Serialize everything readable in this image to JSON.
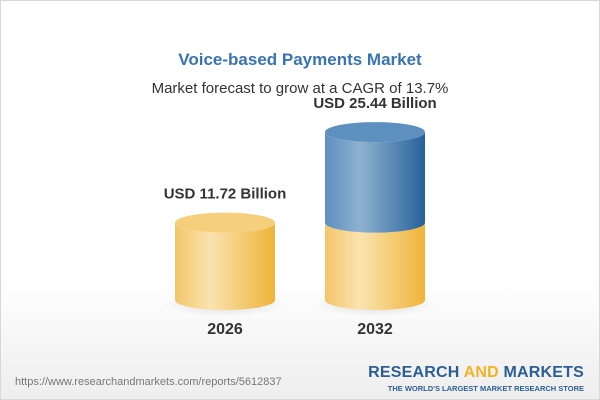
{
  "header": {
    "title": "Voice-based Payments Market",
    "subtitle": "Market forecast to grow at a CAGR of 13.7%"
  },
  "chart_data": {
    "type": "bar",
    "style": "3d-cylinder",
    "title": "Voice-based Payments Market",
    "subtitle": "Market forecast to grow at a CAGR of 13.7%",
    "categories": [
      "2026",
      "2032"
    ],
    "values": [
      11.72,
      25.44
    ],
    "unit": "USD Billion",
    "data_labels": [
      "USD 11.72 Billion",
      "USD 25.44 Billion"
    ],
    "grid": false,
    "colors": {
      "base": "#f2c35e",
      "growth": "#4a82b6"
    }
  },
  "footer": {
    "url": "https://www.researchandmarkets.com/reports/5612837",
    "logo_word1": "RESEARCH ",
    "logo_word2": "AND",
    "logo_word3": " MARKETS",
    "logo_tagline": "THE WORLD'S LARGEST MARKET RESEARCH STORE"
  }
}
